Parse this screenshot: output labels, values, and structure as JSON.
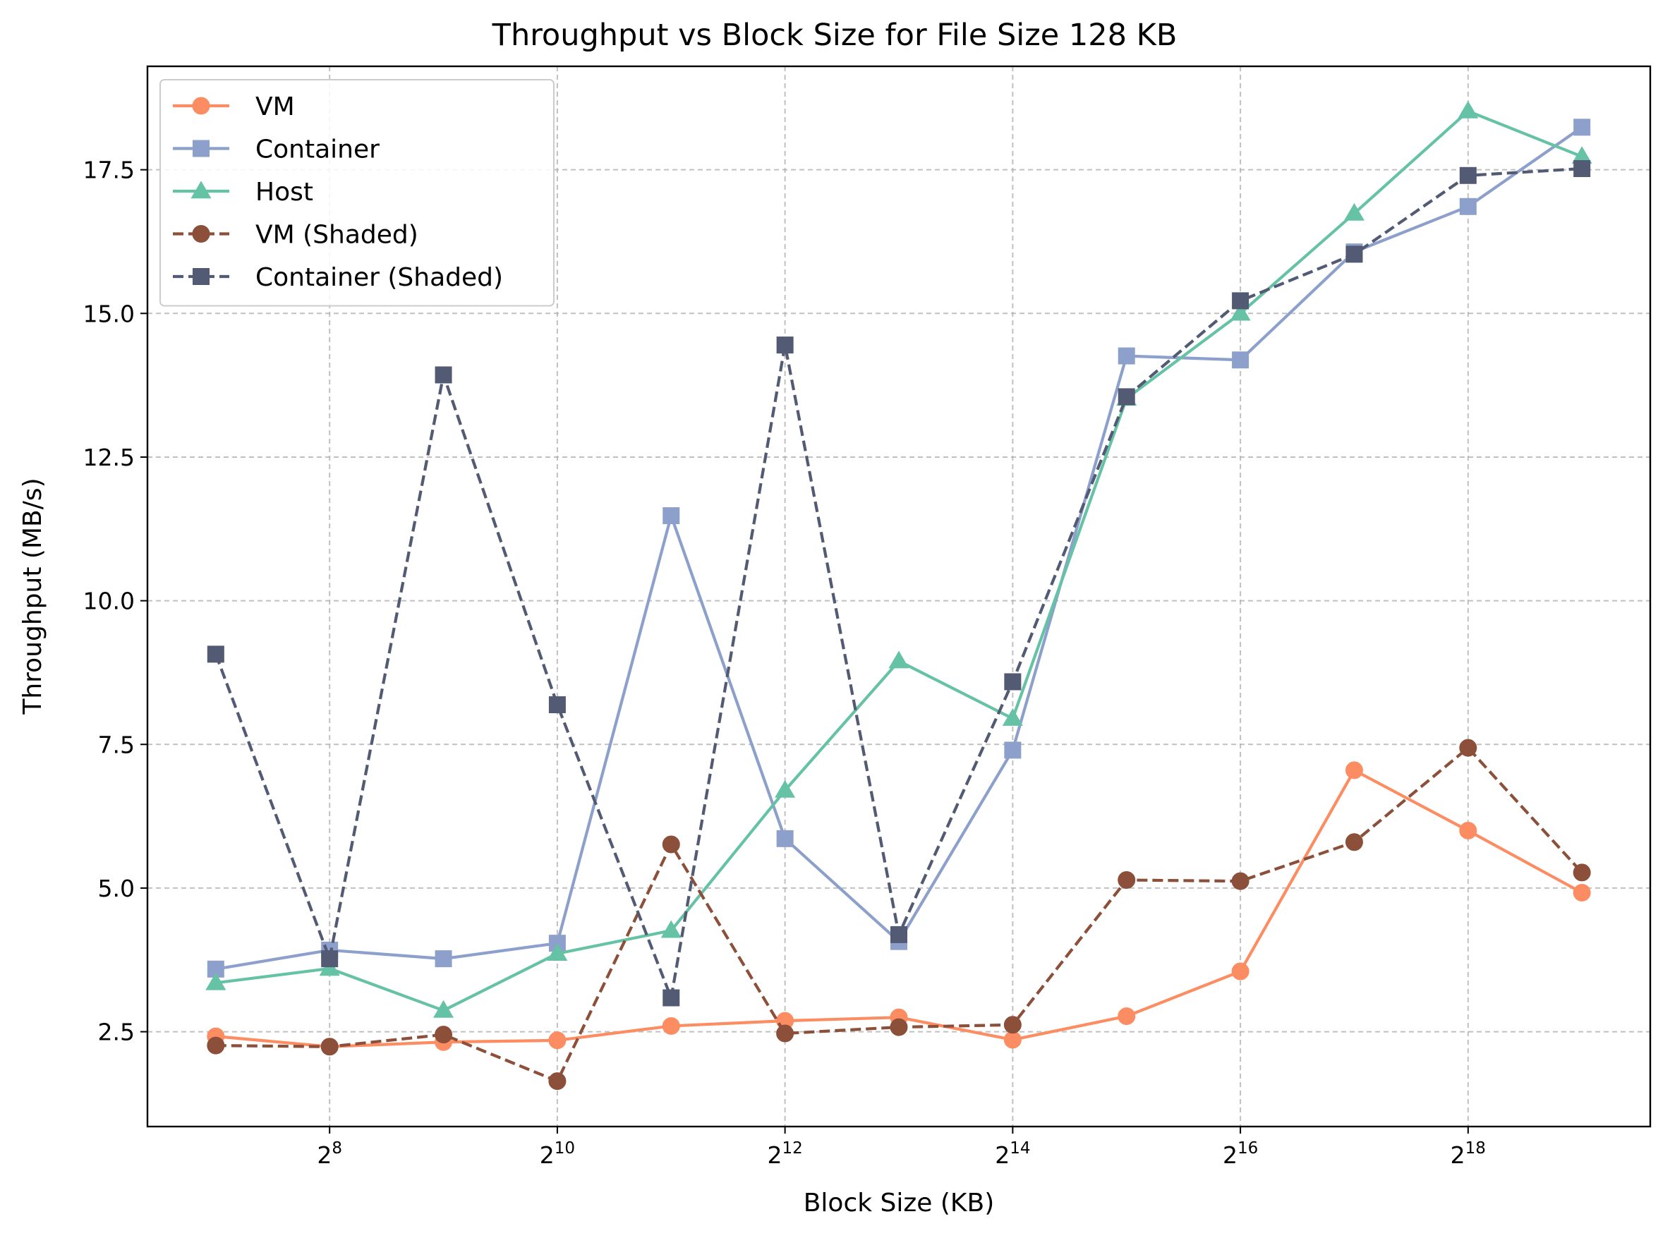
{
  "chart_data": {
    "type": "line",
    "title": "Throughput vs Block Size for File Size 128 KB",
    "xlabel": "Block Size (KB)",
    "ylabel": "Throughput (MB/s)",
    "x_scale": "log2",
    "x": [
      128,
      256,
      512,
      1024,
      2048,
      4096,
      8192,
      16384,
      32768,
      65536,
      131072,
      262144,
      524288
    ],
    "x_ticks": [
      {
        "value": 256,
        "base": "2",
        "exp": "8"
      },
      {
        "value": 1024,
        "base": "2",
        "exp": "10"
      },
      {
        "value": 4096,
        "base": "2",
        "exp": "12"
      },
      {
        "value": 16384,
        "base": "2",
        "exp": "14"
      },
      {
        "value": 65536,
        "base": "2",
        "exp": "16"
      },
      {
        "value": 262144,
        "base": "2",
        "exp": "18"
      }
    ],
    "ylim": [
      0.85,
      19.3
    ],
    "y_ticks": [
      "2.5",
      "5.0",
      "7.5",
      "10.0",
      "12.5",
      "15.0",
      "17.5"
    ],
    "grid": true,
    "legend_position": "top-left",
    "series": [
      {
        "name": "VM",
        "color": "#fc8d62",
        "marker": "circle",
        "dashed": false,
        "values": [
          2.42,
          2.24,
          2.32,
          2.35,
          2.6,
          2.69,
          2.75,
          2.36,
          2.77,
          3.55,
          7.05,
          6.0,
          4.92
        ]
      },
      {
        "name": "Container",
        "color": "#8da0cb",
        "marker": "square",
        "dashed": false,
        "values": [
          3.59,
          3.92,
          3.77,
          4.04,
          11.48,
          5.86,
          4.07,
          7.4,
          14.26,
          14.19,
          16.07,
          16.86,
          18.24
        ]
      },
      {
        "name": "Host",
        "color": "#66c2a5",
        "marker": "triangle",
        "dashed": false,
        "values": [
          3.35,
          3.6,
          2.87,
          3.86,
          4.26,
          6.7,
          8.95,
          7.95,
          13.52,
          15.0,
          16.74,
          18.52,
          17.73
        ]
      },
      {
        "name": "VM (Shaded)",
        "color": "#8c4f3a",
        "marker": "circle",
        "dashed": true,
        "values": [
          2.26,
          2.24,
          2.45,
          1.64,
          5.76,
          2.47,
          2.58,
          2.62,
          5.14,
          5.12,
          5.8,
          7.44,
          5.27
        ]
      },
      {
        "name": "Container (Shaded)",
        "color": "#525b73",
        "marker": "square",
        "dashed": true,
        "values": [
          9.07,
          3.77,
          13.93,
          8.19,
          3.09,
          14.45,
          4.19,
          8.59,
          13.55,
          15.22,
          16.03,
          17.4,
          17.52
        ]
      }
    ]
  }
}
